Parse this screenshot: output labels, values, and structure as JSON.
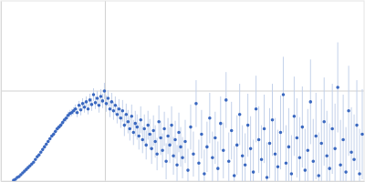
{
  "chart_data": {
    "type": "scatter",
    "x": [
      14,
      16,
      18,
      20,
      22,
      24,
      26,
      28,
      30,
      32,
      34,
      36,
      38,
      40,
      42,
      44,
      46,
      48,
      50,
      52,
      54,
      56,
      58,
      60,
      62,
      64,
      66,
      68,
      70,
      72,
      74,
      76,
      78,
      80,
      82,
      84,
      86,
      88,
      90,
      92,
      94,
      96,
      98,
      100,
      102,
      104,
      106,
      108,
      110,
      112,
      114,
      116,
      118,
      120,
      122,
      124,
      126,
      128,
      130,
      132,
      134,
      136,
      138,
      140,
      142,
      144,
      146,
      148,
      150,
      152,
      154,
      156,
      158,
      160,
      162,
      164,
      166,
      168,
      170,
      172,
      174,
      176,
      178,
      180,
      182,
      184,
      186,
      188,
      190,
      192,
      194,
      196,
      198,
      200,
      203,
      206,
      209,
      212,
      215,
      218,
      221,
      224,
      227,
      230,
      233,
      236,
      239,
      242,
      245,
      248,
      251,
      254,
      257,
      260,
      263,
      266,
      269,
      272,
      275,
      278,
      281,
      284,
      287,
      290,
      293,
      296,
      299,
      302,
      305,
      308,
      311,
      314,
      317,
      320,
      323,
      326,
      329,
      332,
      335,
      338,
      341,
      344,
      347,
      350,
      353,
      356,
      359,
      362,
      365,
      368,
      371,
      374,
      377,
      380,
      383,
      386,
      389,
      392,
      395,
      398
    ],
    "y": [
      1,
      2,
      4,
      5,
      7,
      9,
      11,
      13,
      15,
      17,
      19,
      21,
      24,
      27,
      29,
      32,
      35,
      38,
      41,
      44,
      47,
      50,
      52,
      55,
      58,
      60,
      62,
      65,
      68,
      70,
      73,
      75,
      76,
      78,
      80,
      76,
      84,
      79,
      86,
      82,
      88,
      80,
      90,
      85,
      96,
      87,
      92,
      84,
      94,
      89,
      100,
      86,
      92,
      80,
      88,
      78,
      84,
      74,
      80,
      70,
      78,
      62,
      74,
      66,
      58,
      72,
      54,
      64,
      60,
      50,
      68,
      46,
      58,
      40,
      62,
      52,
      36,
      56,
      44,
      30,
      66,
      48,
      34,
      58,
      22,
      50,
      40,
      62,
      28,
      46,
      18,
      54,
      38,
      26,
      44,
      12,
      60,
      30,
      86,
      20,
      52,
      8,
      38,
      70,
      26,
      48,
      14,
      64,
      34,
      90,
      22,
      56,
      6,
      40,
      74,
      28,
      18,
      62,
      36,
      10,
      80,
      46,
      24,
      58,
      4,
      42,
      68,
      30,
      16,
      54,
      96,
      20,
      38,
      8,
      72,
      48,
      26,
      60,
      12,
      34,
      88,
      22,
      50,
      6,
      42,
      66,
      28,
      14,
      58,
      36,
      104,
      18,
      46,
      10,
      78,
      32,
      24,
      62,
      8,
      52
    ],
    "errors": [
      1,
      1,
      1,
      1,
      1,
      1,
      1,
      1,
      1,
      1,
      1,
      1,
      1,
      2,
      2,
      2,
      2,
      2,
      2,
      2,
      2,
      2,
      3,
      3,
      3,
      3,
      3,
      3,
      3,
      4,
      4,
      4,
      4,
      4,
      5,
      5,
      5,
      6,
      6,
      6,
      6,
      6,
      7,
      7,
      7,
      7,
      8,
      8,
      8,
      8,
      9,
      9,
      9,
      9,
      10,
      10,
      10,
      10,
      11,
      11,
      12,
      12,
      12,
      13,
      13,
      13,
      14,
      14,
      14,
      15,
      15,
      15,
      16,
      16,
      16,
      17,
      17,
      17,
      18,
      18,
      18,
      19,
      19,
      19,
      20,
      20,
      20,
      21,
      21,
      21,
      22,
      22,
      22,
      23,
      24,
      24,
      25,
      25,
      26,
      26,
      27,
      27,
      28,
      28,
      29,
      29,
      30,
      30,
      31,
      31,
      32,
      32,
      33,
      33,
      34,
      34,
      35,
      35,
      36,
      36,
      37,
      37,
      38,
      38,
      39,
      39,
      40,
      40,
      41,
      41,
      42,
      42,
      43,
      43,
      44,
      44,
      45,
      45,
      46,
      46,
      47,
      47,
      48,
      48,
      49,
      49,
      50,
      50,
      50,
      50,
      50,
      50,
      50,
      50,
      50,
      50,
      50,
      50,
      50,
      50
    ],
    "color": "#3a68c0",
    "marker": "circle",
    "xlim": [
      0,
      400
    ],
    "ylim": [
      0,
      200
    ],
    "xticks": [
      115
    ],
    "yticks": [
      100
    ],
    "grid": true,
    "tick_labels": false
  }
}
